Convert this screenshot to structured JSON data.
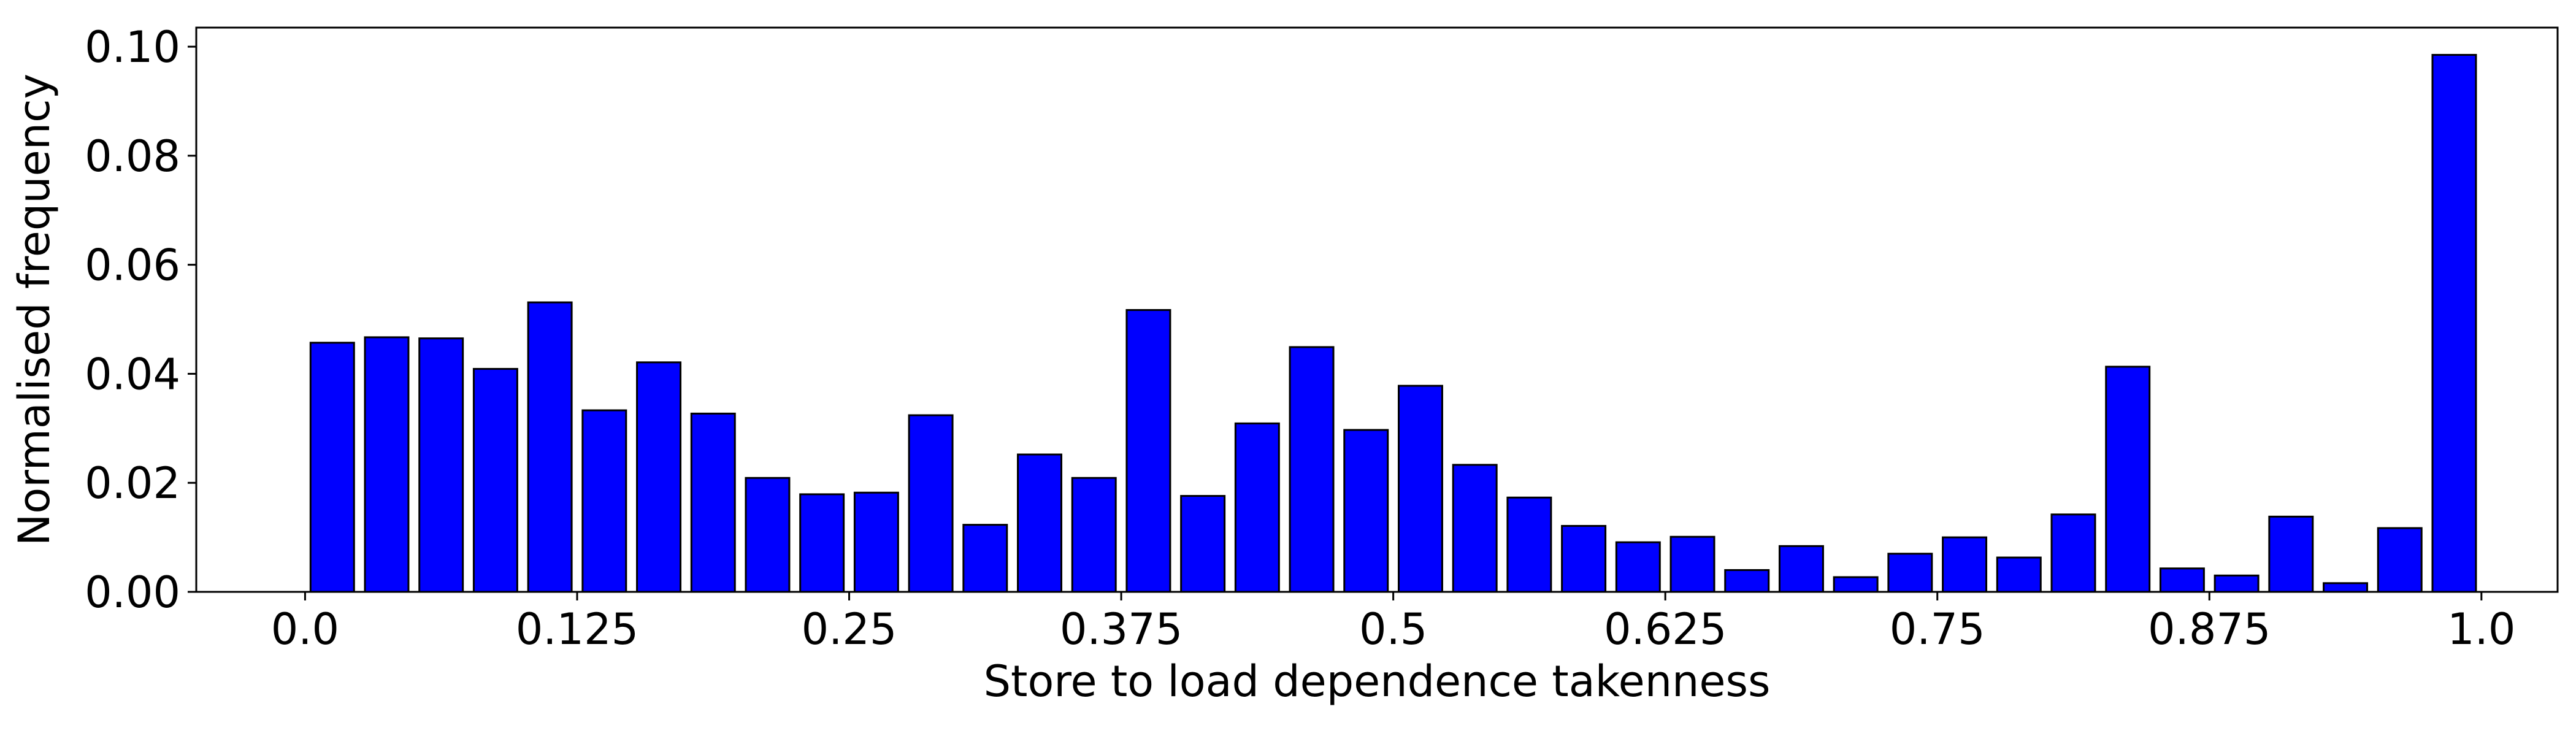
{
  "chart_data": {
    "type": "bar",
    "title": "",
    "xlabel": "Store to load dependence takenness",
    "ylabel": "Normalised frequency",
    "xlim": [
      -0.05,
      1.035
    ],
    "ylim": [
      0,
      0.1035
    ],
    "x_ticks": [
      0.0,
      0.125,
      0.25,
      0.375,
      0.5,
      0.625,
      0.75,
      0.875,
      1.0
    ],
    "x_tick_labels": [
      "0.0",
      "0.125",
      "0.25",
      "0.375",
      "0.5",
      "0.625",
      "0.75",
      "0.875",
      "1.0"
    ],
    "y_ticks": [
      0,
      0.02,
      0.04,
      0.06,
      0.08,
      0.1
    ],
    "y_tick_labels": [
      "0.00",
      "0.02",
      "0.04",
      "0.06",
      "0.08",
      "0.10"
    ],
    "grid": false,
    "legend": "none",
    "bar_width": 0.02,
    "colors": {
      "bar_fill": "#0000ff",
      "bar_edge": "#000000",
      "axis": "#000000"
    },
    "x": [
      0.0125,
      0.0375,
      0.0625,
      0.0875,
      0.1125,
      0.1375,
      0.1625,
      0.1875,
      0.2125,
      0.2375,
      0.2625,
      0.2875,
      0.3125,
      0.3375,
      0.3625,
      0.3875,
      0.4125,
      0.4375,
      0.4625,
      0.4875,
      0.5125,
      0.5375,
      0.5625,
      0.5875,
      0.6125,
      0.6375,
      0.6625,
      0.6875,
      0.7125,
      0.7375,
      0.7625,
      0.7875,
      0.8125,
      0.8375,
      0.8625,
      0.8875,
      0.9125,
      0.9375,
      0.9625,
      0.9875
    ],
    "values": [
      0.0457,
      0.0467,
      0.0465,
      0.0409,
      0.0531,
      0.0333,
      0.0421,
      0.0327,
      0.0209,
      0.0179,
      0.0182,
      0.0324,
      0.0123,
      0.0252,
      0.0209,
      0.0517,
      0.0176,
      0.0309,
      0.0449,
      0.0297,
      0.0378,
      0.0233,
      0.0173,
      0.0121,
      0.0091,
      0.0101,
      0.004,
      0.0084,
      0.0027,
      0.007,
      0.01,
      0.0063,
      0.0142,
      0.0413,
      0.0043,
      0.003,
      0.0138,
      0.0016,
      0.0117,
      0.0985
    ]
  }
}
